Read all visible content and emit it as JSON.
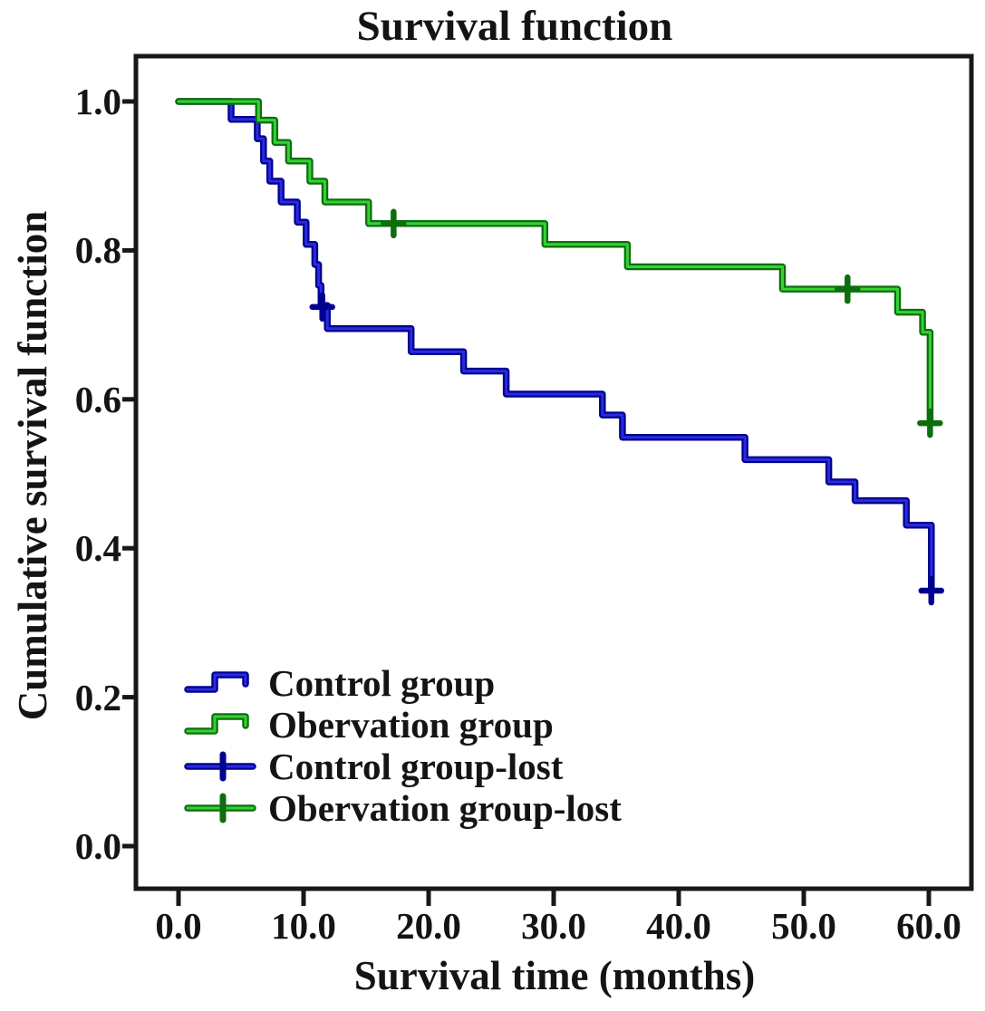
{
  "chart_data": {
    "type": "line",
    "subtype": "kaplan_meier_step",
    "title": "Survival function",
    "xlabel": "Survival time (months)",
    "ylabel": "Cumulative survival function",
    "xlim": [
      0,
      60
    ],
    "ylim": [
      0.0,
      1.0
    ],
    "grid": false,
    "legend_position": "inside-lower-left",
    "frame_color": "#181818",
    "text_color": "#141414",
    "background_color": "#ffffff",
    "x_ticks": {
      "values": [
        0,
        10,
        20,
        30,
        40,
        50,
        60
      ],
      "labels": [
        "0.0",
        "10.0",
        "20.0",
        "30.0",
        "40.0",
        "50.0",
        "60.0"
      ]
    },
    "y_ticks": {
      "values": [
        0.0,
        0.2,
        0.4,
        0.6,
        0.8,
        1.0
      ],
      "labels": [
        "0.0",
        "0.2",
        "0.4",
        "0.6",
        "0.8",
        "1.0"
      ]
    },
    "series": [
      {
        "name": "Control group",
        "color_core": "#2b2bdc",
        "color_edge": "#000090",
        "steps": [
          [
            0,
            1.0
          ],
          [
            4.2,
            0.976
          ],
          [
            6.3,
            0.95
          ],
          [
            6.8,
            0.92
          ],
          [
            7.3,
            0.893
          ],
          [
            8.2,
            0.865
          ],
          [
            9.5,
            0.838
          ],
          [
            10.2,
            0.808
          ],
          [
            10.9,
            0.781
          ],
          [
            11.2,
            0.753
          ],
          [
            11.4,
            0.726
          ],
          [
            11.9,
            0.695
          ],
          [
            18.6,
            0.664
          ],
          [
            22.8,
            0.638
          ],
          [
            26.2,
            0.607
          ],
          [
            33.9,
            0.579
          ],
          [
            35.5,
            0.549
          ],
          [
            45.3,
            0.519
          ],
          [
            52.0,
            0.489
          ],
          [
            54.1,
            0.464
          ],
          [
            58.2,
            0.431
          ],
          [
            60.2,
            0.343
          ]
        ],
        "censored": [
          [
            11.5,
            0.724
          ],
          [
            60.2,
            0.343
          ]
        ]
      },
      {
        "name": "Obervation group",
        "color_core": "#34d234",
        "color_edge": "#0d6e0d",
        "steps": [
          [
            0,
            1.0
          ],
          [
            6.4,
            0.975
          ],
          [
            7.7,
            0.945
          ],
          [
            8.8,
            0.92
          ],
          [
            10.5,
            0.893
          ],
          [
            11.7,
            0.865
          ],
          [
            15.2,
            0.836
          ],
          [
            29.3,
            0.808
          ],
          [
            35.9,
            0.778
          ],
          [
            48.3,
            0.748
          ],
          [
            57.5,
            0.717
          ],
          [
            59.5,
            0.69
          ],
          [
            60.1,
            0.568
          ]
        ],
        "censored": [
          [
            17.2,
            0.836
          ],
          [
            53.5,
            0.748
          ],
          [
            60.1,
            0.568
          ]
        ]
      }
    ],
    "legend": [
      {
        "label": "Control group",
        "marker": "step",
        "series_index": 0
      },
      {
        "label": "Obervation group",
        "marker": "step",
        "series_index": 1
      },
      {
        "label": "Control group-lost",
        "marker": "plus",
        "series_index": 0
      },
      {
        "label": "Obervation group-lost",
        "marker": "plus",
        "series_index": 1
      }
    ]
  }
}
